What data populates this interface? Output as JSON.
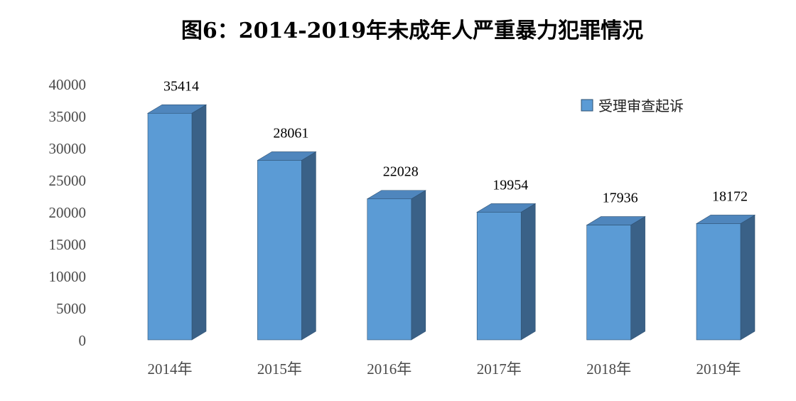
{
  "chart_data": {
    "type": "bar",
    "title": "图6：2014-2019年未成年人严重暴力犯罪情况",
    "categories": [
      "2014年",
      "2015年",
      "2016年",
      "2017年",
      "2018年",
      "2019年"
    ],
    "series": [
      {
        "name": "受理审查起诉",
        "values": [
          35414,
          28061,
          22028,
          19954,
          17936,
          18172
        ]
      }
    ],
    "data_labels": [
      "35414",
      "28061",
      "22028",
      "19954",
      "17936",
      "18172"
    ],
    "yticks": [
      "0",
      "5000",
      "10000",
      "15000",
      "20000",
      "25000",
      "30000",
      "35000",
      "40000"
    ],
    "ylim": [
      0,
      40000
    ],
    "xlabel": "",
    "ylabel": "",
    "grid": false,
    "legend_position": "top-right",
    "style": "3d-column",
    "colors": {
      "front": "#5b9bd5",
      "top": "#4f86bd",
      "side": "#3a6187",
      "edge": "#2e5072"
    }
  }
}
